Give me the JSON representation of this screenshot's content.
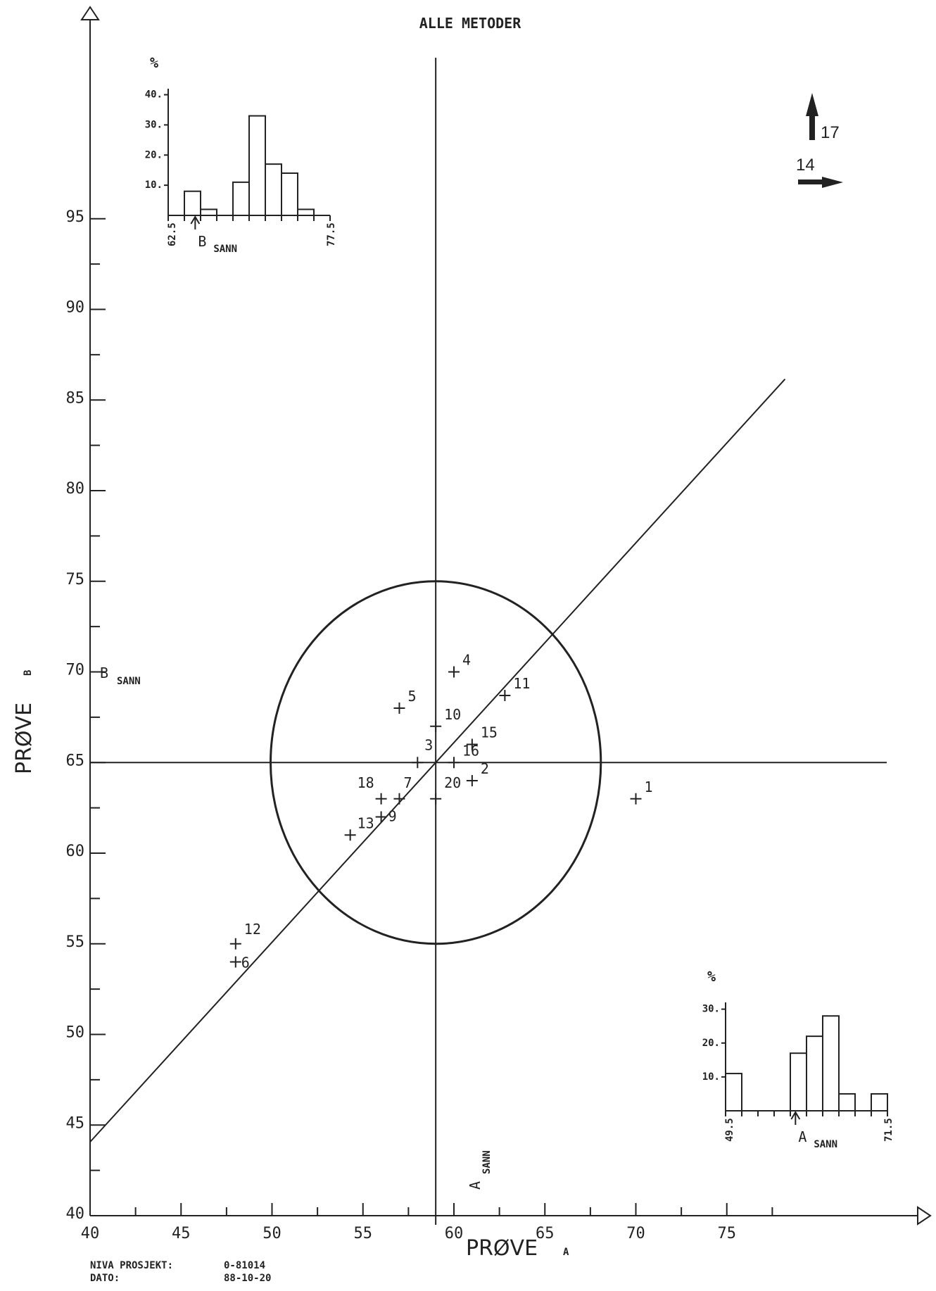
{
  "chart_data": {
    "type": "scatter",
    "title": "ALLE METODER",
    "xlabel": "PRØVE",
    "xlabel_sub": "A",
    "ylabel": "PRØVE",
    "ylabel_sub": "B",
    "xlim": [
      40,
      78
    ],
    "ylim": [
      40,
      96
    ],
    "xticks": [
      40,
      45,
      50,
      55,
      60,
      65,
      70,
      75
    ],
    "yticks": [
      40,
      45,
      50,
      55,
      60,
      65,
      70,
      75,
      80,
      85,
      90,
      95
    ],
    "true_value": {
      "a": 59,
      "b": 65,
      "a_label": "A",
      "b_label": "B",
      "sub_label": "SANN"
    },
    "circle_radius_b": 10,
    "points": [
      {
        "label": "1",
        "x": 70,
        "y": 63
      },
      {
        "label": "2",
        "x": 61,
        "y": 64
      },
      {
        "label": "3",
        "x": 58,
        "y": 65
      },
      {
        "label": "4",
        "x": 60,
        "y": 70
      },
      {
        "label": "5",
        "x": 57,
        "y": 68
      },
      {
        "label": "6",
        "x": 48,
        "y": 54
      },
      {
        "label": "9",
        "x": 56,
        "y": 62
      },
      {
        "label": "10",
        "x": 59,
        "y": 67
      },
      {
        "label": "11",
        "x": 62.8,
        "y": 68.7
      },
      {
        "label": "12",
        "x": 48,
        "y": 55
      },
      {
        "label": "13",
        "x": 54.3,
        "y": 61
      },
      {
        "label": "15",
        "x": 61,
        "y": 66
      },
      {
        "label": "16",
        "x": 60,
        "y": 65
      },
      {
        "label": "18",
        "x": 56,
        "y": 63
      },
      {
        "label": "7",
        "x": 57,
        "y": 63
      },
      {
        "label": "20",
        "x": 59,
        "y": 63
      }
    ],
    "outside": [
      {
        "label": "17",
        "direction": "up"
      },
      {
        "label": "14",
        "direction": "right"
      }
    ],
    "hist_b": {
      "ylabel": "%",
      "yticks": [
        "40.",
        "30.",
        "20.",
        "10."
      ],
      "range": [
        "62.5",
        "77.5"
      ],
      "marker_label": "B",
      "marker_sub": "SANN",
      "values": [
        0,
        8,
        2,
        0,
        11,
        33,
        17,
        14,
        2,
        0
      ]
    },
    "hist_a": {
      "ylabel": "%",
      "yticks": [
        "30.",
        "20.",
        "10."
      ],
      "range": [
        "49.5",
        "71.5"
      ],
      "marker_label": "A",
      "marker_sub": "SANN",
      "values": [
        11,
        0,
        0,
        0,
        17,
        22,
        28,
        5,
        0,
        5
      ]
    }
  },
  "footer": {
    "project_label": "NIVA PROSJEKT:",
    "project_value": "0-81014",
    "date_label": "DATO:",
    "date_value": "88-10-20"
  }
}
